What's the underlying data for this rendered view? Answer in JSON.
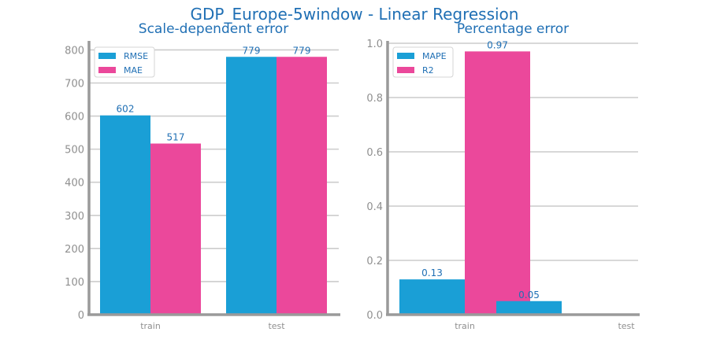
{
  "figure": {
    "title": "GDP_Europe-5window - Linear Regression",
    "colors": {
      "text": "#1f6fb4",
      "axis": "#9a9a9a",
      "grid": "#cccccc",
      "tick": "#8f8f8f",
      "series_a": "#1a9fd6",
      "series_b": "#eb489b"
    }
  },
  "chart_data": [
    {
      "type": "bar",
      "title": "Scale-dependent error",
      "categories": [
        "train",
        "test"
      ],
      "series": [
        {
          "name": "RMSE",
          "values": [
            602,
            779
          ],
          "labels": [
            "602",
            "779"
          ]
        },
        {
          "name": "MAE",
          "values": [
            517,
            779
          ],
          "labels": [
            "517",
            "779"
          ]
        }
      ],
      "ylim": [
        0,
        820
      ],
      "yticks": [
        0,
        100,
        200,
        300,
        400,
        500,
        600,
        700,
        800
      ],
      "ytick_labels": [
        "0",
        "100",
        "200",
        "300",
        "400",
        "500",
        "600",
        "700",
        "800"
      ],
      "grid": true,
      "legend": "top-left"
    },
    {
      "type": "bar",
      "title": "Percentage error",
      "categories": [
        "train",
        "test"
      ],
      "series": [
        {
          "name": "MAPE",
          "values": [
            0.13,
            0.05
          ],
          "labels": [
            "0.13",
            "0.05"
          ]
        },
        {
          "name": "R2",
          "values": [
            0.97,
            null
          ],
          "labels": [
            "0.97",
            ""
          ]
        }
      ],
      "ylim": [
        0,
        1.0
      ],
      "yticks": [
        0,
        0.2,
        0.4,
        0.6,
        0.8,
        1.0
      ],
      "ytick_labels": [
        "0.0",
        "0.2",
        "0.4",
        "0.6",
        "0.8",
        "1.0"
      ],
      "grid": true,
      "legend": "top-left"
    }
  ]
}
